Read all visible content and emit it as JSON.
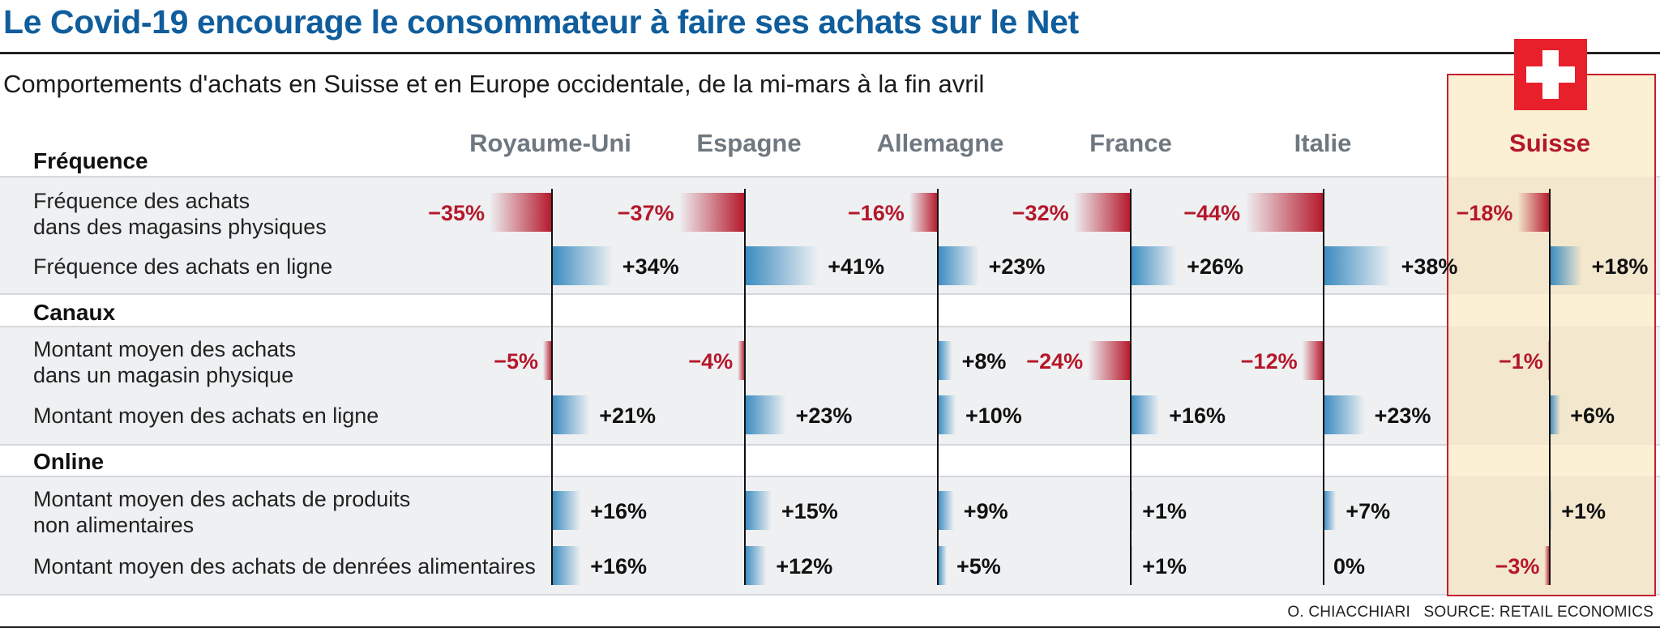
{
  "title": "Le Covid-19 encourage le consommateur à faire ses achats sur le Net",
  "subtitle": "Comportements d'achats en Suisse et en Europe occidentale, de la mi-mars à la fin avril",
  "footer": {
    "author": "O. CHIACCHIARI",
    "source": "SOURCE: RETAIL ECONOMICS"
  },
  "colors": {
    "negative": "#b5172a",
    "positive": "#3a8bc0",
    "highlight_bg": "#fbf0d4",
    "highlight_border": "#c41e2f",
    "highlight_label": "#b5172a",
    "country_label": "#6f7880",
    "flag": "#e8202b"
  },
  "icons": {
    "flag": "swiss-flag-icon"
  },
  "chart_data": {
    "type": "bar",
    "orientation": "horizontal",
    "highlight_country": "Suisse",
    "countries": [
      "Royaume-Uni",
      "Espagne",
      "Allemagne",
      "France",
      "Italie",
      "Suisse"
    ],
    "sections": [
      {
        "label": "Fréquence",
        "rows": [
          {
            "label": [
              "Fréquence des achats",
              "dans des magasins physiques"
            ],
            "values": [
              -35,
              -37,
              -16,
              -32,
              -44,
              -18
            ]
          },
          {
            "label": [
              "Fréquence des achats en ligne"
            ],
            "values": [
              34,
              41,
              23,
              26,
              38,
              18
            ]
          }
        ]
      },
      {
        "label": "Canaux",
        "rows": [
          {
            "label": [
              "Montant moyen des achats",
              "dans un magasin physique"
            ],
            "values": [
              -5,
              -4,
              8,
              -24,
              -12,
              -1
            ]
          },
          {
            "label": [
              "Montant moyen des achats en ligne"
            ],
            "values": [
              21,
              23,
              10,
              16,
              23,
              6
            ]
          }
        ]
      },
      {
        "label": "Online",
        "rows": [
          {
            "label": [
              "Montant moyen des achats de produits",
              "non alimentaires"
            ],
            "values": [
              16,
              15,
              9,
              1,
              7,
              1
            ]
          },
          {
            "label": [
              "Montant moyen des achats de denrées alimentaires"
            ],
            "values": [
              16,
              12,
              5,
              1,
              0,
              -3
            ]
          }
        ]
      }
    ],
    "value_unit": "%"
  }
}
